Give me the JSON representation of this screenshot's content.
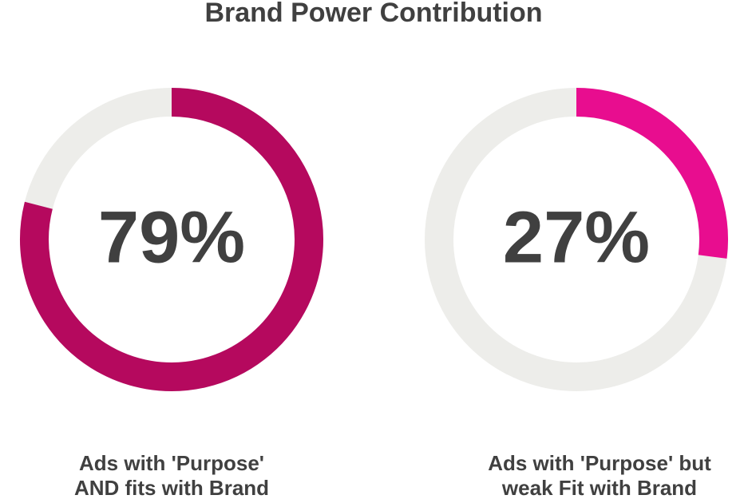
{
  "title": "Brand Power Contribution",
  "chart_data": [
    {
      "type": "donut",
      "values": [
        79
      ],
      "value_labels": [
        "79%"
      ],
      "color": "#b5095e",
      "track_color": "#ededea",
      "label_lines": [
        "Ads with 'Purpose'",
        "AND fits with Brand"
      ]
    },
    {
      "type": "donut",
      "values": [
        27
      ],
      "value_labels": [
        "27%"
      ],
      "color": "#e80d8f",
      "track_color": "#ededea",
      "label_lines": [
        "Ads with 'Purpose' but",
        "weak Fit with Brand"
      ]
    }
  ]
}
